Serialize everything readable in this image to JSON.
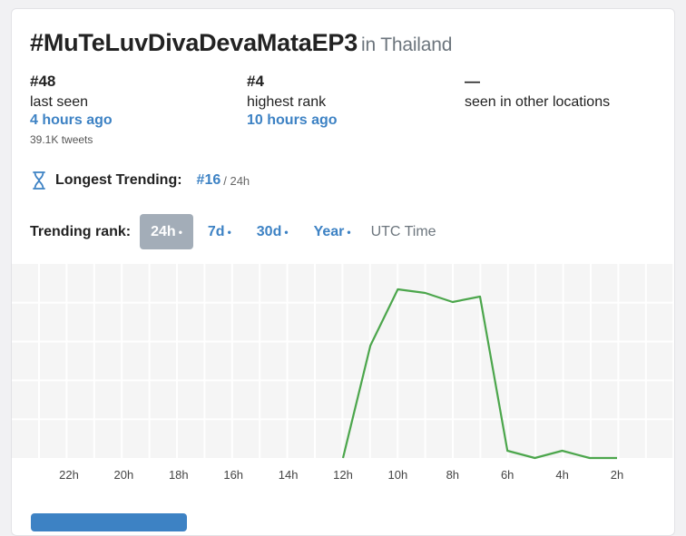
{
  "header": {
    "hashtag": "#MuTeLuvDivaDevaMataEP3",
    "location": "in Thailand"
  },
  "stats": [
    {
      "value": "#48",
      "label": "last seen",
      "when": "4 hours ago",
      "sub": "39.1K tweets"
    },
    {
      "value": "#4",
      "label": "highest rank",
      "when": "10 hours ago",
      "sub": ""
    },
    {
      "value": "—",
      "label": "seen in other locations",
      "when": "",
      "sub": ""
    }
  ],
  "longest": {
    "label": "Longest Trending:",
    "rank": "#16",
    "period": "/ 24h"
  },
  "trending": {
    "label": "Trending rank:",
    "tabs": [
      {
        "label": "24h",
        "active": true
      },
      {
        "label": "7d",
        "active": false
      },
      {
        "label": "30d",
        "active": false
      },
      {
        "label": "Year",
        "active": false
      }
    ],
    "dot": "•",
    "utc_label": "UTC Time"
  },
  "chart_data": {
    "type": "line",
    "x_tick_labels": [
      "22h",
      "20h",
      "18h",
      "16h",
      "14h",
      "12h",
      "10h",
      "8h",
      "6h",
      "4h",
      "2h"
    ],
    "x_hours_ago": [
      12,
      11,
      10,
      9,
      8,
      7,
      6,
      5,
      4,
      3,
      2
    ],
    "y_level": [
      0.0,
      0.62,
      0.93,
      0.91,
      0.86,
      0.89,
      0.04,
      0.0,
      0.04,
      0.0,
      0.0
    ],
    "line_color": "#4ca64c",
    "grid": true
  },
  "colors": {
    "accent": "#3d82c4",
    "line": "#4ca64c",
    "grid_bg": "#f5f5f5"
  }
}
